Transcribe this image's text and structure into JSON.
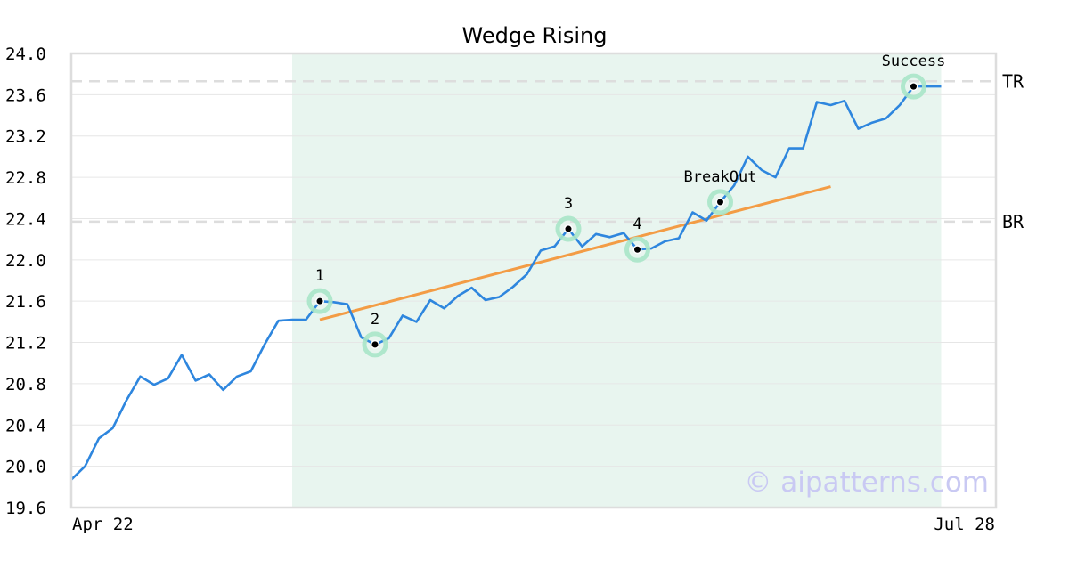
{
  "watermark": "© aipatterns.com",
  "chart_data": {
    "type": "line",
    "title": "Wedge Rising",
    "xlabel": "",
    "ylabel": "",
    "ylim": [
      19.6,
      24.0
    ],
    "yticks": [
      "24.0",
      "23.6",
      "23.2",
      "22.8",
      "22.4",
      "22.0",
      "21.6",
      "21.2",
      "20.8",
      "20.4",
      "20.0",
      "19.6"
    ],
    "x_axis_labels": [
      "Apr 22",
      "Jul 28"
    ],
    "grid": true,
    "colors": {
      "price": "#2e86de",
      "trend": "#f39c45",
      "highlight": "#e8f5ef",
      "marker_ring": "#a8e6c8",
      "level_line": "#dddddd"
    },
    "series": [
      {
        "values": [
          19.87,
          20.0,
          20.27,
          20.37,
          20.64,
          20.87,
          20.79,
          20.85,
          21.08,
          20.83,
          20.89,
          20.74,
          20.87,
          20.92,
          21.18,
          21.41,
          21.42,
          21.42,
          21.6,
          21.59,
          21.57,
          21.25,
          21.18,
          21.24,
          21.46,
          21.4,
          21.61,
          21.53,
          21.65,
          21.73,
          21.61,
          21.64,
          21.74,
          21.86,
          22.09,
          22.13,
          22.3,
          22.13,
          22.25,
          22.22,
          22.26,
          22.1,
          22.11,
          22.18,
          22.21,
          22.46,
          22.38,
          22.56,
          22.72,
          23.0,
          22.87,
          22.8,
          23.08,
          23.08,
          23.53,
          23.5,
          23.54,
          23.27,
          23.33,
          23.37,
          23.5,
          23.68,
          23.68,
          23.68
        ]
      }
    ],
    "highlight_range": [
      16,
      63
    ],
    "trendline": {
      "from": [
        18,
        21.42
      ],
      "to": [
        55,
        22.71
      ]
    },
    "levels": [
      {
        "label": "TR",
        "value": 23.73
      },
      {
        "label": "BR",
        "value": 22.37
      }
    ],
    "points": [
      {
        "label": "1",
        "index": 18,
        "value": 21.6,
        "label_pos": "above"
      },
      {
        "label": "2",
        "index": 22,
        "value": 21.18,
        "label_pos": "above"
      },
      {
        "label": "3",
        "index": 36,
        "value": 22.3,
        "label_pos": "above"
      },
      {
        "label": "4",
        "index": 41,
        "value": 22.1,
        "label_pos": "above"
      },
      {
        "label": "BreakOut",
        "index": 47,
        "value": 22.56,
        "label_pos": "above"
      },
      {
        "label": "Success",
        "index": 61,
        "value": 23.68,
        "label_pos": "above"
      }
    ]
  }
}
